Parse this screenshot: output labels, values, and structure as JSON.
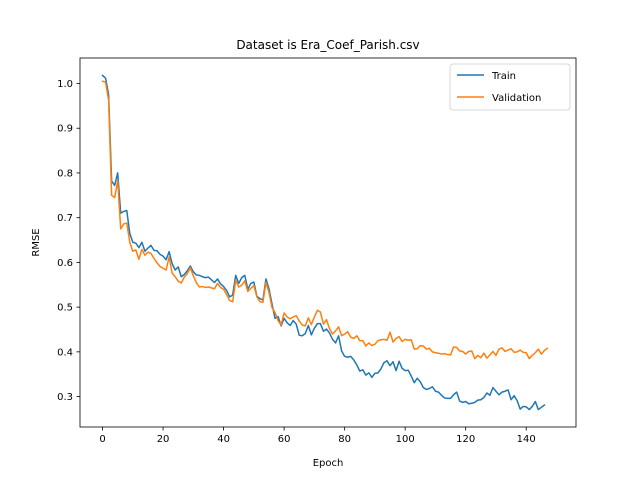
{
  "chart_data": {
    "type": "line",
    "title": "Dataset is Era_Coef_Parish.csv",
    "xlabel": "Epoch",
    "ylabel": "RMSE",
    "xlim": [
      -7.45,
      156.45
    ],
    "ylim": [
      0.232,
      1.057
    ],
    "xticks": [
      0,
      20,
      40,
      60,
      80,
      100,
      120,
      140
    ],
    "yticks": [
      0.3,
      0.4,
      0.5,
      0.6,
      0.7,
      0.8,
      0.9,
      1.0
    ],
    "yticklabels": [
      "0.3",
      "0.4",
      "0.5",
      "0.6",
      "0.7",
      "0.8",
      "0.9",
      "1.0"
    ],
    "grid": false,
    "legend": "top-right",
    "series": [
      {
        "name": "Train",
        "color": "#1f77b4",
        "values": [
          1.018,
          1.012,
          0.975,
          0.782,
          0.772,
          0.8,
          0.71,
          0.714,
          0.716,
          0.665,
          0.645,
          0.643,
          0.633,
          0.645,
          0.625,
          0.632,
          0.638,
          0.627,
          0.626,
          0.618,
          0.614,
          0.606,
          0.624,
          0.597,
          0.583,
          0.59,
          0.568,
          0.573,
          0.581,
          0.592,
          0.579,
          0.572,
          0.571,
          0.568,
          0.566,
          0.567,
          0.561,
          0.555,
          0.563,
          0.552,
          0.546,
          0.537,
          0.523,
          0.527,
          0.571,
          0.553,
          0.566,
          0.571,
          0.54,
          0.553,
          0.556,
          0.524,
          0.519,
          0.516,
          0.563,
          0.541,
          0.507,
          0.475,
          0.479,
          0.458,
          0.475,
          0.465,
          0.459,
          0.47,
          0.462,
          0.437,
          0.436,
          0.441,
          0.459,
          0.438,
          0.453,
          0.463,
          0.463,
          0.446,
          0.451,
          0.442,
          0.428,
          0.42,
          0.436,
          0.402,
          0.39,
          0.388,
          0.39,
          0.382,
          0.371,
          0.357,
          0.36,
          0.348,
          0.353,
          0.343,
          0.352,
          0.353,
          0.362,
          0.376,
          0.38,
          0.369,
          0.378,
          0.358,
          0.379,
          0.363,
          0.358,
          0.359,
          0.346,
          0.331,
          0.341,
          0.333,
          0.32,
          0.316,
          0.318,
          0.322,
          0.312,
          0.31,
          0.303,
          0.297,
          0.296,
          0.296,
          0.304,
          0.31,
          0.29,
          0.287,
          0.289,
          0.284,
          0.285,
          0.287,
          0.292,
          0.293,
          0.298,
          0.308,
          0.303,
          0.32,
          0.312,
          0.304,
          0.31,
          0.312,
          0.315,
          0.293,
          0.302,
          0.291,
          0.272,
          0.278,
          0.277,
          0.271,
          0.278,
          0.289,
          0.271,
          0.276,
          0.281
        ]
      },
      {
        "name": "Validation",
        "color": "#ff7f0e",
        "values": [
          1.005,
          1.003,
          0.963,
          0.75,
          0.745,
          0.782,
          0.675,
          0.686,
          0.688,
          0.645,
          0.625,
          0.628,
          0.607,
          0.629,
          0.616,
          0.623,
          0.62,
          0.609,
          0.599,
          0.591,
          0.587,
          0.583,
          0.612,
          0.576,
          0.568,
          0.558,
          0.554,
          0.567,
          0.575,
          0.588,
          0.57,
          0.555,
          0.545,
          0.546,
          0.544,
          0.545,
          0.543,
          0.541,
          0.553,
          0.544,
          0.54,
          0.528,
          0.515,
          0.512,
          0.56,
          0.545,
          0.549,
          0.559,
          0.535,
          0.542,
          0.548,
          0.523,
          0.512,
          0.511,
          0.555,
          0.533,
          0.499,
          0.488,
          0.47,
          0.46,
          0.487,
          0.478,
          0.474,
          0.478,
          0.481,
          0.469,
          0.46,
          0.458,
          0.476,
          0.461,
          0.478,
          0.493,
          0.489,
          0.462,
          0.472,
          0.452,
          0.44,
          0.447,
          0.456,
          0.436,
          0.44,
          0.445,
          0.433,
          0.43,
          0.436,
          0.425,
          0.425,
          0.413,
          0.42,
          0.414,
          0.417,
          0.425,
          0.427,
          0.428,
          0.426,
          0.444,
          0.422,
          0.43,
          0.434,
          0.423,
          0.428,
          0.426,
          0.427,
          0.406,
          0.407,
          0.414,
          0.413,
          0.406,
          0.408,
          0.4,
          0.398,
          0.397,
          0.395,
          0.396,
          0.394,
          0.393,
          0.411,
          0.41,
          0.402,
          0.401,
          0.395,
          0.401,
          0.402,
          0.385,
          0.392,
          0.387,
          0.397,
          0.386,
          0.393,
          0.401,
          0.392,
          0.406,
          0.409,
          0.401,
          0.404,
          0.407,
          0.399,
          0.4,
          0.404,
          0.399,
          0.398,
          0.385,
          0.392,
          0.398,
          0.406,
          0.395,
          0.403,
          0.408
        ]
      }
    ]
  }
}
